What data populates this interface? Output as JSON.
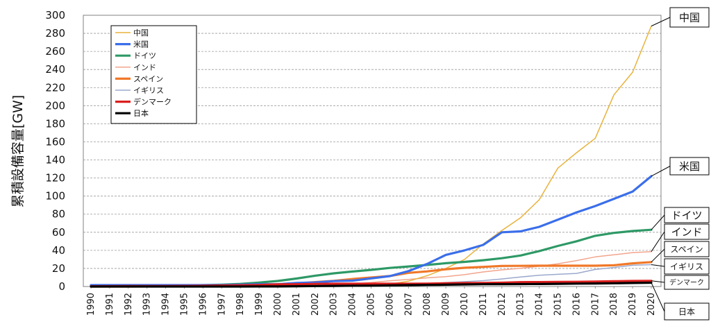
{
  "chart_data": {
    "type": "line",
    "title": "",
    "xlabel": "",
    "ylabel": "累積設備容量[GW]",
    "ylim": [
      0,
      300
    ],
    "y_ticks": [
      0,
      20,
      40,
      60,
      80,
      100,
      120,
      140,
      160,
      180,
      200,
      220,
      240,
      260,
      280,
      300
    ],
    "grid": "horizontal-dashed",
    "legend_position": "top-left",
    "x": [
      1990,
      1991,
      1992,
      1993,
      1994,
      1995,
      1996,
      1997,
      1998,
      1999,
      2000,
      2001,
      2002,
      2003,
      2004,
      2005,
      2006,
      2007,
      2008,
      2009,
      2010,
      2011,
      2012,
      2013,
      2014,
      2015,
      2016,
      2017,
      2018,
      2019,
      2020
    ],
    "x_tick_labels": [
      "1990",
      "1991",
      "1992",
      "1993",
      "1994",
      "1995",
      "1996",
      "1997",
      "1998",
      "1999",
      "2000",
      "2001",
      "2002",
      "2003",
      "2004",
      "2005",
      "2006",
      "2007",
      "2008",
      "2009",
      "2010",
      "2011",
      "2012",
      "2013",
      "2014",
      "2015",
      "2016",
      "2017",
      "2018",
      "2019",
      "2020"
    ],
    "series": [
      {
        "name": "中国",
        "color": "#E8B23A",
        "values": [
          0,
          0,
          0,
          0,
          0,
          0,
          0.1,
          0.2,
          0.2,
          0.3,
          0.3,
          0.4,
          0.5,
          0.6,
          0.8,
          1.3,
          2.6,
          5.9,
          12.0,
          20.0,
          30.0,
          47.0,
          62.0,
          76.0,
          96.0,
          131.0,
          148.0,
          164.0,
          212.0,
          237.0,
          288.0
        ]
      },
      {
        "name": "米国",
        "color": "#3A6EEA",
        "values": [
          1.5,
          1.5,
          1.5,
          1.5,
          1.5,
          1.5,
          1.5,
          1.5,
          2.0,
          2.5,
          2.5,
          4.0,
          4.5,
          6.0,
          6.5,
          9.0,
          11.5,
          17.0,
          25.0,
          35.0,
          40.0,
          46.0,
          60.0,
          61.0,
          66.0,
          74.0,
          82.0,
          89.0,
          97.0,
          105.0,
          122.0
        ]
      },
      {
        "name": "ドイツ",
        "color": "#2E9966",
        "values": [
          0,
          0.1,
          0.2,
          0.3,
          0.6,
          1.1,
          1.5,
          2.1,
          2.9,
          4.4,
          6.1,
          8.8,
          12.0,
          14.6,
          16.6,
          18.4,
          20.6,
          22.2,
          23.9,
          25.8,
          27.2,
          29.1,
          31.3,
          34.3,
          39.2,
          44.9,
          50.0,
          56.1,
          59.3,
          61.4,
          62.8
        ]
      },
      {
        "name": "インド",
        "color": "#F2A48C",
        "values": [
          0,
          0,
          0,
          0,
          0.1,
          0.5,
          0.8,
          0.9,
          1.0,
          1.1,
          1.2,
          1.5,
          1.7,
          2.1,
          3.0,
          4.4,
          6.3,
          7.8,
          9.6,
          10.9,
          13.1,
          16.1,
          18.4,
          20.2,
          22.5,
          25.1,
          28.7,
          32.8,
          35.1,
          37.5,
          38.6
        ]
      },
      {
        "name": "スペイン",
        "color": "#F07828",
        "values": [
          0,
          0,
          0,
          0.1,
          0.1,
          0.1,
          0.2,
          0.5,
          0.8,
          1.5,
          2.2,
          3.4,
          4.9,
          6.2,
          8.3,
          10.0,
          11.6,
          15.1,
          16.7,
          19.1,
          20.7,
          21.7,
          22.8,
          22.9,
          23.0,
          23.0,
          23.0,
          23.0,
          23.5,
          25.6,
          27.0
        ]
      },
      {
        "name": "イギリス",
        "color": "#9AA8CC",
        "values": [
          0,
          0,
          0,
          0,
          0.1,
          0.2,
          0.3,
          0.3,
          0.3,
          0.4,
          0.4,
          0.5,
          0.6,
          0.7,
          0.9,
          1.4,
          2.0,
          2.4,
          3.2,
          4.4,
          5.4,
          6.5,
          8.4,
          10.5,
          12.4,
          13.5,
          14.5,
          18.9,
          21.0,
          23.5,
          24.2
        ]
      },
      {
        "name": "デンマーク",
        "color": "#DC1E1E",
        "values": [
          0.3,
          0.4,
          0.5,
          0.5,
          0.5,
          0.6,
          0.8,
          1.1,
          1.4,
          1.7,
          2.4,
          2.5,
          2.9,
          3.1,
          3.1,
          3.1,
          3.1,
          3.1,
          3.2,
          3.5,
          3.8,
          3.9,
          4.2,
          4.8,
          4.9,
          5.1,
          5.2,
          5.5,
          5.8,
          6.1,
          6.3
        ]
      },
      {
        "name": "日本",
        "color": "#000000",
        "values": [
          0,
          0,
          0,
          0,
          0,
          0,
          0,
          0,
          0,
          0.1,
          0.1,
          0.3,
          0.5,
          0.7,
          0.9,
          1.0,
          1.3,
          1.5,
          1.8,
          2.0,
          2.3,
          2.5,
          2.6,
          2.7,
          2.8,
          3.0,
          3.2,
          3.4,
          3.6,
          3.9,
          4.2
        ]
      }
    ],
    "callouts": [
      {
        "series": "中国",
        "label": "中国",
        "font_size": 15
      },
      {
        "series": "米国",
        "label": "米国",
        "font_size": 15
      },
      {
        "series": "ドイツ",
        "label": "ドイツ",
        "font_size": 15
      },
      {
        "series": "インド",
        "label": "インド",
        "font_size": 15
      },
      {
        "series": "スペイン",
        "label": "スペイン",
        "font_size": 12
      },
      {
        "series": "イギリス",
        "label": "イギリス",
        "font_size": 12
      },
      {
        "series": "デンマーク",
        "label": "デンマーク",
        "font_size": 10
      },
      {
        "series": "日本",
        "label": "日本",
        "font_size": 12
      }
    ]
  }
}
